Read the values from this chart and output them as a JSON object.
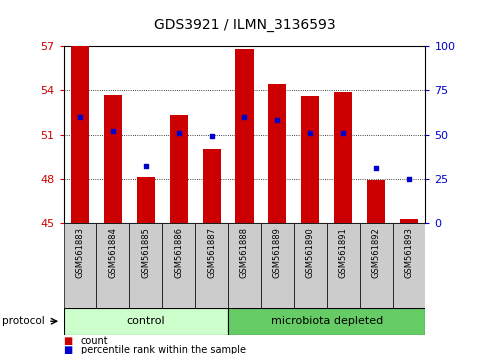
{
  "title": "GDS3921 / ILMN_3136593",
  "samples": [
    "GSM561883",
    "GSM561884",
    "GSM561885",
    "GSM561886",
    "GSM561887",
    "GSM561888",
    "GSM561889",
    "GSM561890",
    "GSM561891",
    "GSM561892",
    "GSM561893"
  ],
  "counts": [
    57.0,
    53.7,
    48.1,
    52.3,
    50.0,
    56.8,
    54.4,
    53.6,
    53.9,
    47.9,
    45.3
  ],
  "percentile_ranks": [
    60,
    52,
    32,
    51,
    49,
    60,
    58,
    51,
    51,
    31,
    25
  ],
  "ylim_left": [
    45,
    57
  ],
  "ylim_right": [
    0,
    100
  ],
  "yticks_left": [
    45,
    48,
    51,
    54,
    57
  ],
  "yticks_right": [
    0,
    25,
    50,
    75,
    100
  ],
  "bar_color": "#cc0000",
  "dot_color": "#0000cc",
  "bar_bottom": 45,
  "groups": [
    {
      "label": "control",
      "start": 0,
      "end": 5,
      "color": "#ccffcc"
    },
    {
      "label": "microbiota depleted",
      "start": 5,
      "end": 11,
      "color": "#66cc66"
    }
  ],
  "legend_items": [
    {
      "label": "count",
      "color": "#cc0000"
    },
    {
      "label": "percentile rank within the sample",
      "color": "#0000cc"
    }
  ],
  "left_tick_color": "#cc0000",
  "right_tick_color": "#0000cc",
  "protocol_label": "protocol",
  "background_color": "#ffffff",
  "tick_bg_color": "#cccccc",
  "grid_color": "#000000",
  "title_fontsize": 10
}
